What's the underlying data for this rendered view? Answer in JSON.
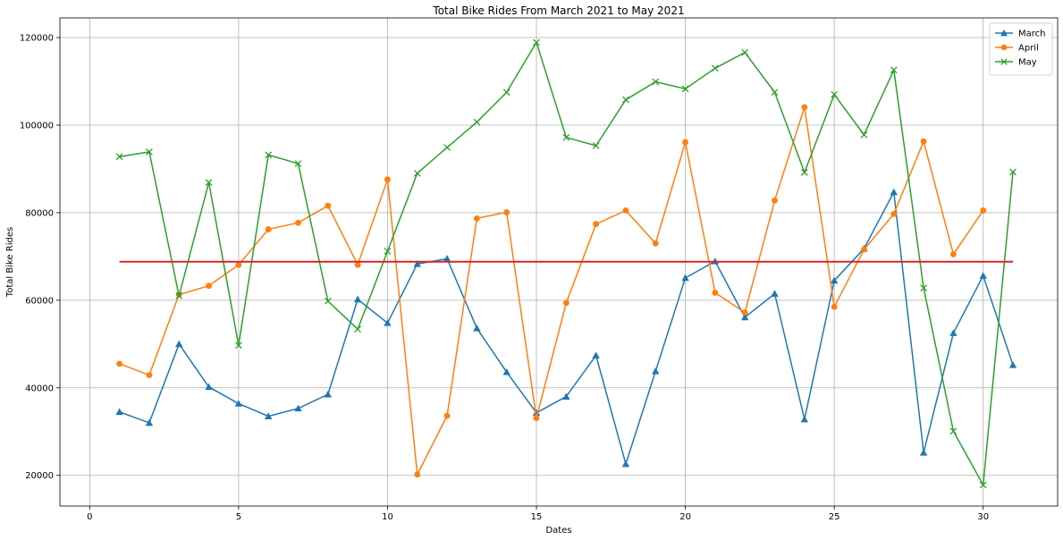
{
  "chart_data": {
    "type": "line",
    "title": "Total Bike Rides From March 2021 to May 2021",
    "xlabel": "Dates",
    "ylabel": "Total Bike Rides",
    "xlim": [
      -1,
      32.5
    ],
    "ylim": [
      13000,
      124500
    ],
    "xticks": [
      0,
      5,
      10,
      15,
      20,
      25,
      30
    ],
    "yticks": [
      20000,
      40000,
      60000,
      80000,
      100000,
      120000
    ],
    "grid": true,
    "legend_position": "top-right",
    "series": [
      {
        "name": "March",
        "color": "#1f77b4",
        "marker": "triangle",
        "x": [
          1,
          2,
          3,
          4,
          5,
          6,
          7,
          8,
          9,
          10,
          11,
          12,
          13,
          14,
          15,
          16,
          17,
          18,
          19,
          20,
          21,
          22,
          23,
          24,
          25,
          26,
          27,
          28,
          29,
          30,
          31
        ],
        "values": [
          34500,
          32000,
          50000,
          40200,
          36400,
          33500,
          35300,
          38500,
          60200,
          54800,
          68300,
          69500,
          53600,
          43600,
          34300,
          38000,
          47400,
          22600,
          43800,
          65100,
          68900,
          56100,
          61500,
          32800,
          64500,
          71800,
          84700,
          25200,
          52500,
          65600,
          45200
        ]
      },
      {
        "name": "April",
        "color": "#ff7f0e",
        "marker": "circle",
        "x": [
          1,
          2,
          3,
          4,
          5,
          6,
          7,
          8,
          9,
          10,
          11,
          12,
          13,
          14,
          15,
          16,
          17,
          18,
          19,
          20,
          21,
          22,
          23,
          24,
          25,
          26,
          27,
          28,
          29,
          30
        ],
        "values": [
          45500,
          42900,
          61300,
          63300,
          68100,
          76200,
          77700,
          81600,
          68100,
          87600,
          20200,
          33600,
          78700,
          80100,
          33100,
          59400,
          77400,
          80500,
          73000,
          96100,
          61700,
          57200,
          82800,
          104100,
          58500,
          71600,
          79700,
          96300,
          70500,
          80500
        ]
      },
      {
        "name": "May",
        "color": "#2ca02c",
        "marker": "x",
        "x": [
          1,
          2,
          3,
          4,
          5,
          6,
          7,
          8,
          9,
          10,
          11,
          12,
          13,
          14,
          15,
          16,
          17,
          18,
          19,
          20,
          21,
          22,
          23,
          24,
          25,
          26,
          27,
          28,
          29,
          30,
          31
        ],
        "values": [
          92800,
          93900,
          61000,
          86900,
          49700,
          93200,
          91200,
          59800,
          53400,
          71200,
          89000,
          94900,
          100700,
          107500,
          118900,
          97200,
          95300,
          105800,
          109900,
          108300,
          113000,
          116600,
          107500,
          89200,
          107000,
          97800,
          112600,
          62800,
          30100,
          17800,
          89300
        ]
      }
    ],
    "reference_line": {
      "color": "#d62728",
      "x_start": 1,
      "x_end": 31,
      "value": 68800
    }
  }
}
